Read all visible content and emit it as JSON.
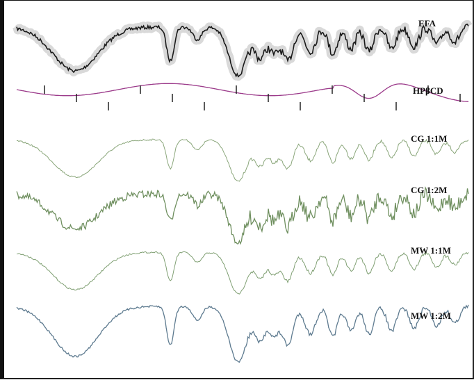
{
  "chart_data": {
    "type": "line",
    "title": "",
    "xlabel": "",
    "ylabel": "",
    "grid": false,
    "legend": "none",
    "series": [
      {
        "name": "EFA",
        "color": "#1a1a1a",
        "halo": "#d9d9d9",
        "style": "dark"
      },
      {
        "name": "HPβCD",
        "color": "#9b3a8a",
        "style": "smooth"
      },
      {
        "name": "CG 1:1M",
        "color": "#8aa67a",
        "style": "faint"
      },
      {
        "name": "CG 1:2M",
        "color": "#6f8f5f",
        "style": "noisy"
      },
      {
        "name": "MW 1:1M",
        "color": "#7f9f72",
        "style": "faint"
      },
      {
        "name": "MW 1:2M",
        "color": "#5d7a8f",
        "style": "medium"
      }
    ]
  }
}
